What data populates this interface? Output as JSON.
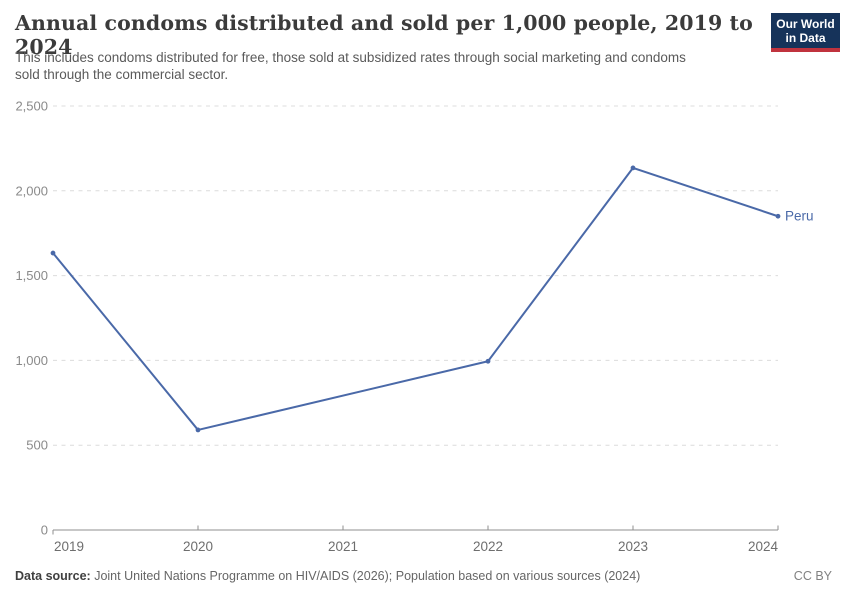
{
  "header": {
    "title": "Annual condoms distributed and sold per 1,000 people, 2019 to 2024",
    "subtitle_lines": [
      "This includes condoms distributed for free, those sold at subsidized rates through social marketing and condoms",
      "sold through the commercial sector."
    ],
    "logo": {
      "line1": "Our World",
      "line2": "in Data",
      "bg_color": "#16335a",
      "accent_color": "#c0333e"
    }
  },
  "chart_data": {
    "type": "line",
    "title": "Annual condoms distributed and sold per 1,000 people, 2019 to 2024",
    "x": [
      2019,
      2020,
      2021,
      2022,
      2023,
      2024
    ],
    "x_tick_labels": [
      "2019",
      "2020",
      "2021",
      "2022",
      "2023",
      "2024"
    ],
    "series": [
      {
        "name": "Peru",
        "color": "#4a69a8",
        "values": [
          1633,
          590,
          null,
          995,
          2135,
          1850
        ]
      }
    ],
    "ylim": [
      0,
      2500
    ],
    "y_ticks": [
      {
        "value": 0,
        "label": "0"
      },
      {
        "value": 500,
        "label": "500"
      },
      {
        "value": 1000,
        "label": "1,000"
      },
      {
        "value": 1500,
        "label": "1,500"
      },
      {
        "value": 2000,
        "label": "2,000"
      },
      {
        "value": 2500,
        "label": "2,500"
      }
    ],
    "grid": "horizontal-dashed",
    "grid_color": "#dcdcdc",
    "axis_color": "#8f8f8f",
    "legend": "end-label",
    "end_label": "Peru"
  },
  "footer": {
    "source_label": "Data source:",
    "source_text": " Joint United Nations Programme on HIV/AIDS (2026); Population based on various sources (2024)",
    "license": "CC BY"
  }
}
